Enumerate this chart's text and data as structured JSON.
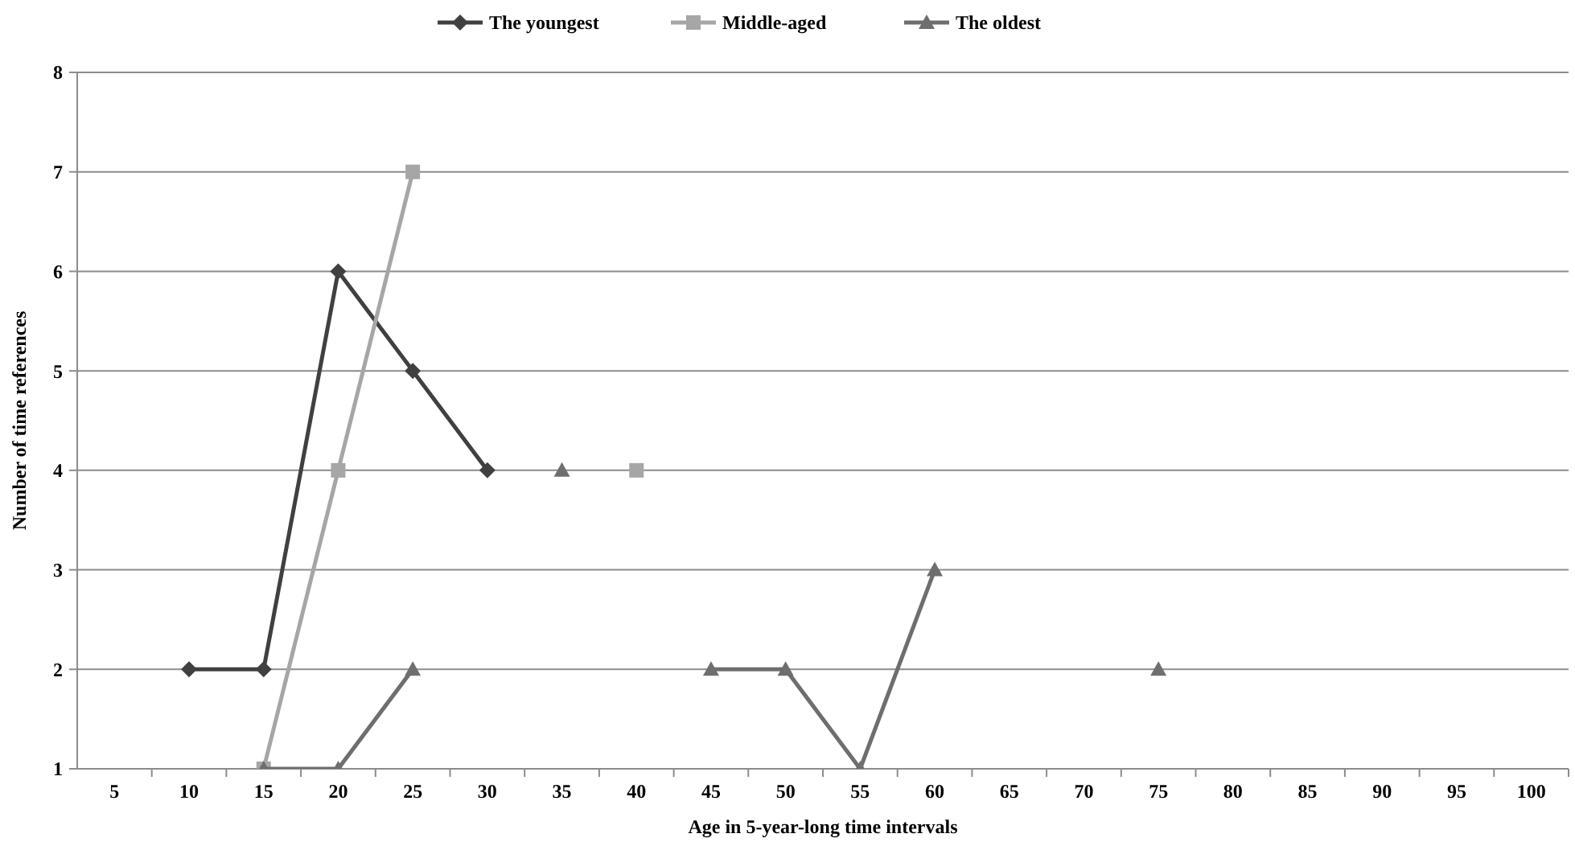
{
  "chart_data": {
    "type": "line",
    "xlabel": "Age in 5-year-long time intervals",
    "ylabel": "Number of time references",
    "categories": [
      "5",
      "10",
      "15",
      "20",
      "25",
      "30",
      "35",
      "40",
      "45",
      "50",
      "55",
      "60",
      "65",
      "70",
      "75",
      "80",
      "85",
      "90",
      "95",
      "100"
    ],
    "series": [
      {
        "name": "The youngest",
        "color": "#404040",
        "marker": "diamond",
        "values": [
          null,
          2,
          2,
          6,
          5,
          4,
          null,
          null,
          null,
          null,
          null,
          null,
          null,
          null,
          null,
          null,
          null,
          null,
          null,
          null
        ]
      },
      {
        "name": "Middle-aged",
        "color": "#a6a6a6",
        "marker": "square",
        "values": [
          null,
          null,
          1,
          4,
          7,
          null,
          null,
          4,
          null,
          null,
          null,
          null,
          null,
          null,
          null,
          null,
          null,
          null,
          null,
          null
        ]
      },
      {
        "name": "The oldest",
        "color": "#6e6e6e",
        "marker": "triangle",
        "values": [
          null,
          null,
          1,
          1,
          2,
          null,
          4,
          null,
          2,
          2,
          1,
          3,
          null,
          null,
          2,
          null,
          null,
          null,
          null,
          null
        ]
      }
    ],
    "ylim": [
      1,
      8
    ],
    "yticks": [
      1,
      2,
      3,
      4,
      5,
      6,
      7,
      8
    ],
    "grid": "y",
    "legend": "top"
  }
}
